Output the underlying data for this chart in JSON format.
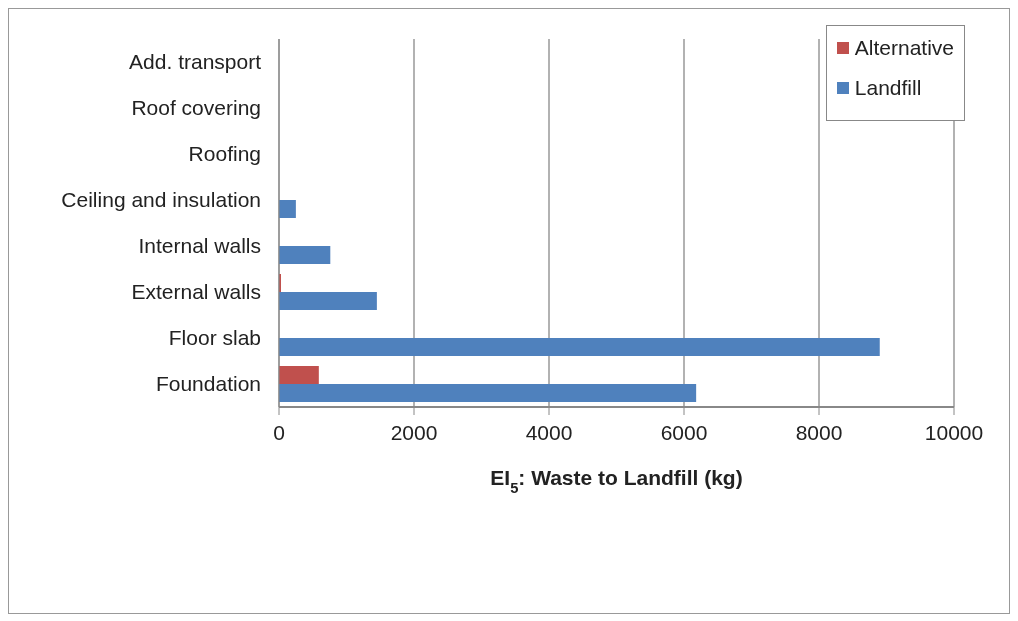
{
  "chart_data": {
    "type": "bar",
    "orientation": "horizontal",
    "categories": [
      "Add. transport",
      "Roof covering",
      "Roofing",
      "Ceiling and insulation",
      "Internal walls",
      "External walls",
      "Floor slab",
      "Foundation"
    ],
    "series": [
      {
        "name": "Alternative",
        "color": "#c0504d",
        "values": [
          0,
          0,
          0,
          0,
          0,
          30,
          0,
          590
        ]
      },
      {
        "name": "Landfill",
        "color": "#4f81bd",
        "values": [
          0,
          0,
          0,
          250,
          760,
          1450,
          8900,
          6180
        ]
      }
    ],
    "xlabel": "EI$_{5}$: Waste to Landfill (kg)",
    "xlim": [
      0,
      10000
    ],
    "xticks": [
      0,
      2000,
      4000,
      6000,
      8000,
      10000
    ],
    "grid": "x",
    "legend": "top right"
  }
}
